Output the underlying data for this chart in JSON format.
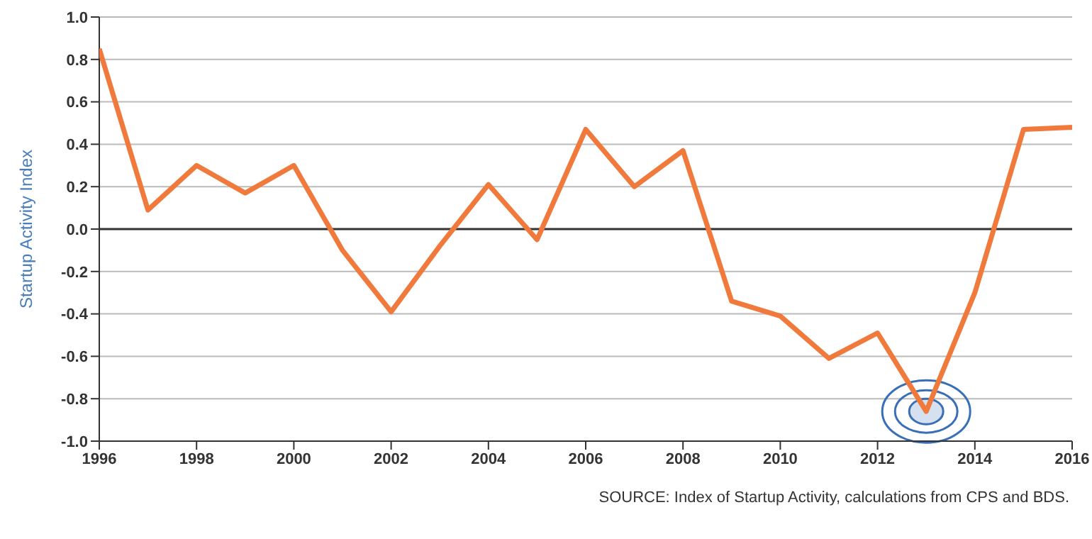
{
  "chart_data": {
    "type": "line",
    "ylabel": "Startup Activity Index",
    "x": [
      1996,
      1997,
      1998,
      1999,
      2000,
      2001,
      2002,
      2003,
      2004,
      2005,
      2006,
      2007,
      2008,
      2009,
      2010,
      2011,
      2012,
      2013,
      2014,
      2015,
      2016
    ],
    "series": [
      {
        "color": "#f07a3c",
        "values": [
          0.85,
          0.09,
          0.3,
          0.17,
          0.3,
          -0.1,
          -0.39,
          -0.08,
          0.21,
          -0.05,
          0.47,
          0.2,
          0.37,
          -0.34,
          -0.41,
          -0.61,
          -0.49,
          -0.86,
          -0.3,
          0.47,
          0.48
        ]
      }
    ],
    "xlim": [
      1996,
      2016
    ],
    "xticks": [
      1996,
      1998,
      2000,
      2002,
      2004,
      2006,
      2008,
      2010,
      2012,
      2014,
      2016
    ],
    "ylim": [
      -1.0,
      1.0
    ],
    "yticks": [
      {
        "value": -1,
        "label": "-1.0"
      },
      {
        "value": -0.8,
        "label": "-0.8"
      },
      {
        "value": -0.6,
        "label": "-0.6"
      },
      {
        "value": -0.4,
        "label": "-0.4"
      },
      {
        "value": -0.2,
        "label": "-0.2"
      },
      {
        "value": 0,
        "label": "0.0"
      },
      {
        "value": 0.2,
        "label": "0.2"
      },
      {
        "value": 0.4,
        "label": "0.4"
      },
      {
        "value": 0.6,
        "label": "0.6"
      },
      {
        "value": 0.8,
        "label": "0.8"
      },
      {
        "value": 1,
        "label": "1.0"
      }
    ],
    "grid": "y",
    "marker": "none",
    "line_style": "solid",
    "ref_lines": [
      {
        "axis": "y",
        "value": 0,
        "color": "#333333"
      }
    ],
    "annotations": [
      "SOURCE: Index of Startup Activity, calculations from CPS and BDS."
    ]
  }
}
